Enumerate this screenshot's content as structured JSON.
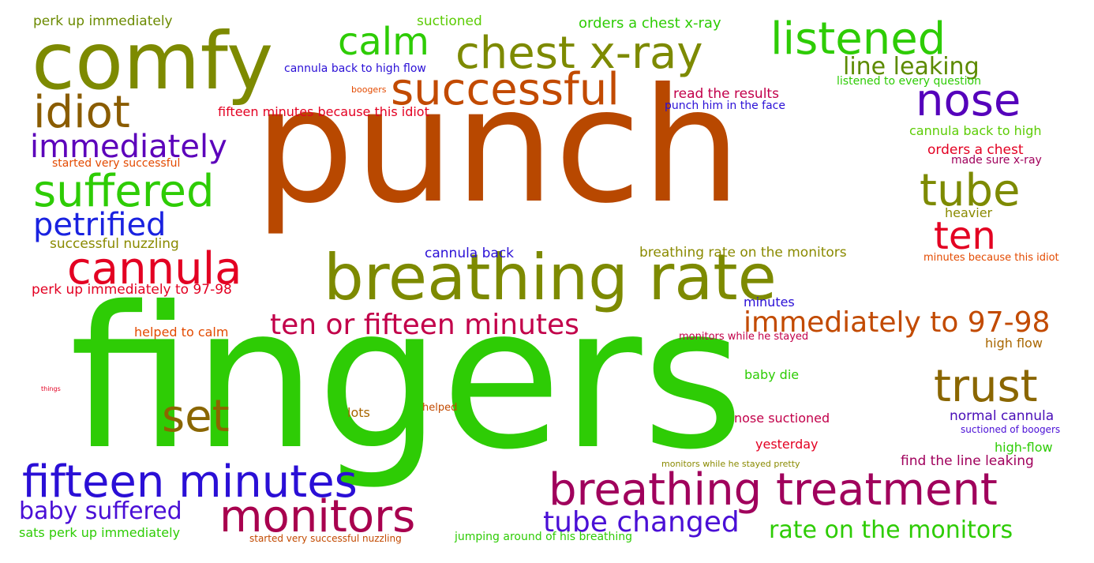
{
  "words": [
    {
      "text": "punch",
      "color": "#b84800"
    },
    {
      "text": "fingers",
      "color": "#2ecc05"
    },
    {
      "text": "comfy",
      "color": "#7d8a00"
    },
    {
      "text": "breathing rate",
      "color": "#7d8a00"
    },
    {
      "text": "chest x-ray",
      "color": "#7d8a00"
    },
    {
      "text": "listened",
      "color": "#2ecc05"
    },
    {
      "text": "calm",
      "color": "#2ecc05"
    },
    {
      "text": "successful",
      "color": "#c24a00"
    },
    {
      "text": "nose",
      "color": "#5500bb"
    },
    {
      "text": "idiot",
      "color": "#8a5c00"
    },
    {
      "text": "immediately",
      "color": "#5c00bb"
    },
    {
      "text": "suffered",
      "color": "#2ecc05"
    },
    {
      "text": "tube",
      "color": "#7d8a00"
    },
    {
      "text": "ten",
      "color": "#e30022"
    },
    {
      "text": "petrified",
      "color": "#1a22e0"
    },
    {
      "text": "cannula",
      "color": "#e30022"
    },
    {
      "text": "ten or fifteen minutes",
      "color": "#c2004a"
    },
    {
      "text": "immediately to 97-98",
      "color": "#c24a00"
    },
    {
      "text": "trust",
      "color": "#8a6600"
    },
    {
      "text": "set",
      "color": "#8a6600"
    },
    {
      "text": "fifteen minutes",
      "color": "#2a0fd6"
    },
    {
      "text": "breathing treatment",
      "color": "#a0005c"
    },
    {
      "text": "monitors",
      "color": "#a8004e"
    },
    {
      "text": "baby suffered",
      "color": "#4a0fd6"
    },
    {
      "text": "tube changed",
      "color": "#4a0fd6"
    },
    {
      "text": "rate on the monitors",
      "color": "#2ecc05"
    },
    {
      "text": "line leaking",
      "color": "#5c8a00"
    },
    {
      "text": "perk up immediately",
      "color": "#6b8a00"
    },
    {
      "text": "suctioned",
      "color": "#5ccc05"
    },
    {
      "text": "orders a chest x-ray",
      "color": "#2ecc05"
    },
    {
      "text": "cannula back to high flow",
      "color": "#2a0fd6"
    },
    {
      "text": "boogers",
      "color": "#e34a00"
    },
    {
      "text": "read the results",
      "color": "#c2004a"
    },
    {
      "text": "listened to every question",
      "color": "#2ecc05"
    },
    {
      "text": "fifteen minutes because this idiot",
      "color": "#e30022"
    },
    {
      "text": "punch him in the face",
      "color": "#2a0fd6"
    },
    {
      "text": "cannula back to high",
      "color": "#5ccc05"
    },
    {
      "text": "orders a chest",
      "color": "#e30022"
    },
    {
      "text": "started very successful",
      "color": "#e34a00"
    },
    {
      "text": "made sure x-ray",
      "color": "#a0005c"
    },
    {
      "text": "heavier",
      "color": "#8a8a00"
    },
    {
      "text": "successful nuzzling",
      "color": "#8a8a00"
    },
    {
      "text": "cannula back",
      "color": "#2a0fd6"
    },
    {
      "text": "breathing rate on the monitors",
      "color": "#8a8a00"
    },
    {
      "text": "minutes because this idiot",
      "color": "#e34a00"
    },
    {
      "text": "perk up immediately to 97-98",
      "color": "#e30022"
    },
    {
      "text": "minutes",
      "color": "#2a0fd6"
    },
    {
      "text": "helped to calm",
      "color": "#e34a00"
    },
    {
      "text": "monitors while he stayed",
      "color": "#c2004a"
    },
    {
      "text": "high flow",
      "color": "#a86600"
    },
    {
      "text": "baby die",
      "color": "#2ecc05"
    },
    {
      "text": "things",
      "color": "#e30022"
    },
    {
      "text": "lots",
      "color": "#a86600"
    },
    {
      "text": "helped",
      "color": "#c24a00"
    },
    {
      "text": "nose suctioned",
      "color": "#c2004a"
    },
    {
      "text": "normal cannula",
      "color": "#4a0fb8"
    },
    {
      "text": "suctioned of boogers",
      "color": "#4a0fd6"
    },
    {
      "text": "yesterday",
      "color": "#e30022"
    },
    {
      "text": "high-flow",
      "color": "#2ecc05"
    },
    {
      "text": "monitors while he stayed pretty",
      "color": "#8a8a00"
    },
    {
      "text": "find the line leaking",
      "color": "#a0005c"
    },
    {
      "text": "sats perk up immediately",
      "color": "#2ecc05"
    },
    {
      "text": "started very successful nuzzling",
      "color": "#c24a00"
    },
    {
      "text": "jumping around of his breathing",
      "color": "#2ecc05"
    }
  ]
}
